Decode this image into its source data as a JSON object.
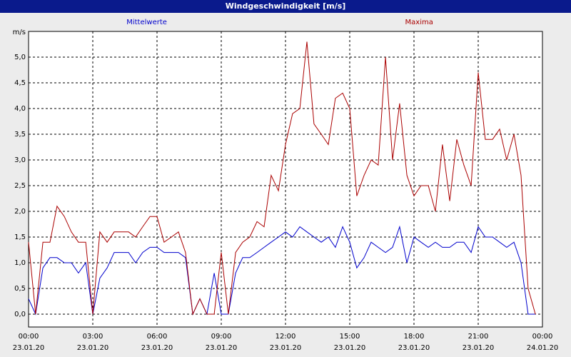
{
  "chart_data": {
    "type": "line",
    "title": "Windgeschwindigkeit [m/s]",
    "ylabel": "m/s",
    "x": [
      0,
      0.33,
      0.67,
      1,
      1.33,
      1.67,
      2,
      2.33,
      2.67,
      3,
      3.33,
      3.67,
      4,
      4.33,
      4.67,
      5,
      5.33,
      5.67,
      6,
      6.33,
      6.67,
      7,
      7.33,
      7.67,
      8,
      8.33,
      8.67,
      9,
      9.33,
      9.67,
      10,
      10.33,
      10.67,
      11,
      11.33,
      11.67,
      12,
      12.33,
      12.67,
      13,
      13.33,
      13.67,
      14,
      14.33,
      14.67,
      15,
      15.33,
      15.67,
      16,
      16.33,
      16.67,
      17,
      17.33,
      17.67,
      18,
      18.33,
      18.67,
      19,
      19.33,
      19.67,
      20,
      20.33,
      20.67,
      21,
      21.33,
      21.67,
      22,
      22.33,
      22.67,
      23,
      23.33,
      23.67
    ],
    "series": [
      {
        "name": "Mittelwerte",
        "color": "#0000cc",
        "values": [
          0.3,
          0,
          0.9,
          1.1,
          1.1,
          1.0,
          1.0,
          0.8,
          1.0,
          0,
          0.7,
          0.9,
          1.2,
          1.2,
          1.2,
          1.0,
          1.2,
          1.3,
          1.3,
          1.2,
          1.2,
          1.2,
          1.1,
          0,
          0.3,
          0,
          0.8,
          0,
          0,
          0.8,
          1.1,
          1.1,
          1.2,
          1.3,
          1.4,
          1.5,
          1.6,
          1.5,
          1.7,
          1.6,
          1.5,
          1.4,
          1.5,
          1.3,
          1.7,
          1.4,
          0.9,
          1.1,
          1.4,
          1.3,
          1.2,
          1.3,
          1.7,
          1.0,
          1.5,
          1.4,
          1.3,
          1.4,
          1.3,
          1.3,
          1.4,
          1.4,
          1.2,
          1.7,
          1.5,
          1.5,
          1.4,
          1.3,
          1.4,
          1.0,
          0,
          0
        ]
      },
      {
        "name": "Maxima",
        "color": "#aa0000",
        "values": [
          1.4,
          0,
          1.4,
          1.4,
          2.1,
          1.9,
          1.6,
          1.4,
          1.4,
          0,
          1.6,
          1.4,
          1.6,
          1.6,
          1.6,
          1.5,
          1.7,
          1.9,
          1.9,
          1.4,
          1.5,
          1.6,
          1.2,
          0,
          0.3,
          0,
          0,
          1.2,
          0,
          1.2,
          1.4,
          1.5,
          1.8,
          1.7,
          2.7,
          2.4,
          3.3,
          3.9,
          4.0,
          5.3,
          3.7,
          3.5,
          3.3,
          4.2,
          4.3,
          4.0,
          2.3,
          2.7,
          3.0,
          2.9,
          5.0,
          3.0,
          4.1,
          2.7,
          2.3,
          2.5,
          2.5,
          2.0,
          3.3,
          2.2,
          3.4,
          2.9,
          2.5,
          4.7,
          3.4,
          3.4,
          3.6,
          3.0,
          3.5,
          2.7,
          0.5,
          0
        ]
      }
    ],
    "xlim": [
      0,
      24
    ],
    "xticks": [
      {
        "value": 0,
        "label": "00:00\n23.01.20"
      },
      {
        "value": 3,
        "label": "03:00\n23.01.20"
      },
      {
        "value": 6,
        "label": "06:00\n23.01.20"
      },
      {
        "value": 9,
        "label": "09:00\n23.01.20"
      },
      {
        "value": 12,
        "label": "12:00\n23.01.20"
      },
      {
        "value": 15,
        "label": "15:00\n23.01.20"
      },
      {
        "value": 18,
        "label": "18:00\n23.01.20"
      },
      {
        "value": 21,
        "label": "21:00\n23.01.20"
      },
      {
        "value": 24,
        "label": "00:00\n24.01.20"
      }
    ],
    "ylim": [
      -0.25,
      5.5
    ],
    "yticks": [
      {
        "value": 0,
        "label": "0,0"
      },
      {
        "value": 0.5,
        "label": "0,5"
      },
      {
        "value": 1,
        "label": "1,0"
      },
      {
        "value": 1.5,
        "label": "1,5"
      },
      {
        "value": 2,
        "label": "2,0"
      },
      {
        "value": 2.5,
        "label": "2,5"
      },
      {
        "value": 3,
        "label": "3,0"
      },
      {
        "value": 3.5,
        "label": "3,5"
      },
      {
        "value": 4,
        "label": "4,0"
      },
      {
        "value": 4.5,
        "label": "4,5"
      },
      {
        "value": 5,
        "label": "5,0"
      }
    ],
    "grid": true
  }
}
